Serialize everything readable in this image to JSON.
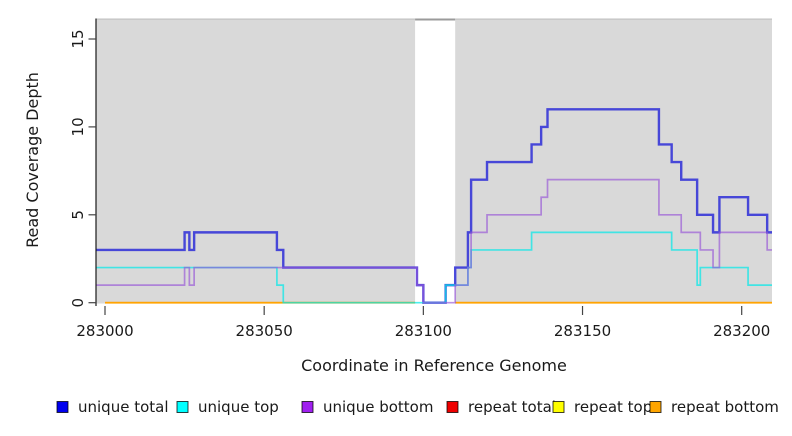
{
  "chart_data": {
    "type": "line",
    "subtype": "step-coverage-plot",
    "title": "",
    "xlabel": "Coordinate in Reference Genome",
    "ylabel": "Read Coverage Depth",
    "xlim": [
      282997,
      283210
    ],
    "ylim": [
      0,
      16
    ],
    "x_ticks": [
      283000,
      283050,
      283100,
      283150,
      283200
    ],
    "y_ticks": [
      0,
      5,
      10,
      15
    ],
    "grid": false,
    "plot_bg_color": "#d9d9d9",
    "gap_band": {
      "start": 283097.4,
      "end": 283110,
      "fill": "#ffffff",
      "note": "white vertical band where repeat series are absent"
    },
    "legend_position": "bottom",
    "series": [
      {
        "name": "repeat total",
        "color": "#e61414",
        "alpha": 0.8,
        "width": 1.5,
        "mode": "flat-segments",
        "value": 0,
        "segments": [
          [
            283000,
            283097.4
          ],
          [
            283110,
            283209.5
          ]
        ]
      },
      {
        "name": "repeat top",
        "color": "#ffff00",
        "alpha": 0.85,
        "width": 1.5,
        "mode": "flat-segments",
        "value": 0,
        "segments": [
          [
            283000,
            283097.4
          ],
          [
            283110,
            283209.5
          ]
        ]
      },
      {
        "name": "repeat bottom",
        "color": "#ff9900",
        "alpha": 0.85,
        "width": 1.8,
        "mode": "flat-segments",
        "value": 0,
        "segments": [
          [
            283000,
            283097.4
          ],
          [
            283110,
            283209.5
          ]
        ]
      },
      {
        "name": "unique total",
        "color": "#2d2dd7",
        "alpha": 0.85,
        "width": 2.4,
        "mode": "steps",
        "steps": [
          [
            283000,
            3
          ],
          [
            283025,
            4
          ],
          [
            283026.5,
            3
          ],
          [
            283028,
            4
          ],
          [
            283054,
            3
          ],
          [
            283056,
            2
          ],
          [
            283098,
            1
          ],
          [
            283100,
            0
          ],
          [
            283107,
            1
          ],
          [
            283110,
            2
          ],
          [
            283114,
            4
          ],
          [
            283115,
            7
          ],
          [
            283120,
            8
          ],
          [
            283134,
            9
          ],
          [
            283137,
            10
          ],
          [
            283139,
            11
          ],
          [
            283174,
            9
          ],
          [
            283178,
            8
          ],
          [
            283181,
            7
          ],
          [
            283186,
            5
          ],
          [
            283191,
            4
          ],
          [
            283193,
            6
          ],
          [
            283202,
            5
          ],
          [
            283208,
            4
          ]
        ]
      },
      {
        "name": "unique top",
        "color": "#00e8e8",
        "alpha": 0.7,
        "width": 1.7,
        "mode": "steps",
        "steps": [
          [
            283000,
            2
          ],
          [
            283054,
            1
          ],
          [
            283056,
            0
          ],
          [
            283107,
            1
          ],
          [
            283114,
            2
          ],
          [
            283115,
            3
          ],
          [
            283134,
            4
          ],
          [
            283178,
            3
          ],
          [
            283186,
            1
          ],
          [
            283187,
            2
          ],
          [
            283202,
            1
          ]
        ]
      },
      {
        "name": "unique bottom",
        "color": "#9655d7",
        "alpha": 0.65,
        "width": 1.7,
        "mode": "steps",
        "steps": [
          [
            283000,
            1
          ],
          [
            283025,
            2
          ],
          [
            283026.5,
            1
          ],
          [
            283028,
            2
          ],
          [
            283098,
            1
          ],
          [
            283100,
            0
          ],
          [
            283110,
            1
          ],
          [
            283114,
            2
          ],
          [
            283115,
            4
          ],
          [
            283120,
            5
          ],
          [
            283137,
            6
          ],
          [
            283139,
            7
          ],
          [
            283174,
            5
          ],
          [
            283181,
            4
          ],
          [
            283187,
            3
          ],
          [
            283191,
            2
          ],
          [
            283193,
            4
          ],
          [
            283208,
            3
          ]
        ]
      }
    ],
    "legend": [
      {
        "label": "unique total",
        "swatch": "#0000ee"
      },
      {
        "label": "unique top",
        "swatch": "#00ffff"
      },
      {
        "label": "unique bottom",
        "swatch": "#a020f0"
      },
      {
        "label": "repeat total",
        "swatch": "#ee0000"
      },
      {
        "label": "repeat top",
        "swatch": "#ffff00"
      },
      {
        "label": "repeat bottom",
        "swatch": "#ffa500"
      }
    ]
  }
}
